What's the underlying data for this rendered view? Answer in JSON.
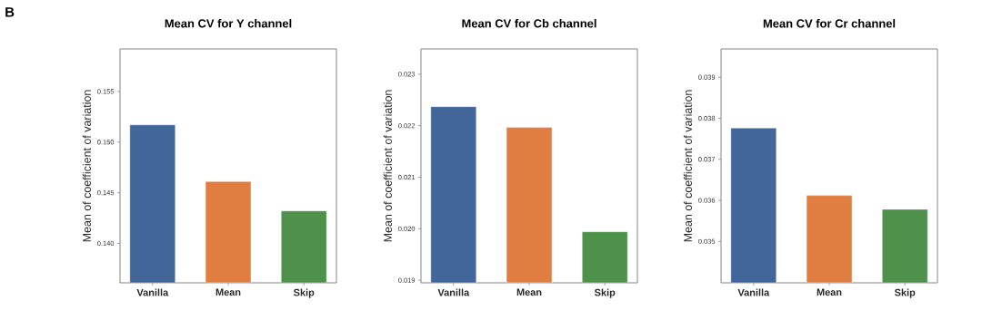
{
  "chart_data": [
    {
      "type": "bar",
      "title": "Mean CV for Y channel",
      "ylabel": "Mean of coefficient of variation",
      "annotations": [
        "B"
      ],
      "categories": [
        "Vanilla",
        "Mean",
        "Skip"
      ],
      "values": [
        0.1517,
        0.1461,
        0.1432
      ],
      "colors": [
        "#426699",
        "#e07e41",
        "#4d914a"
      ],
      "ylim": [
        0.1361,
        0.1592
      ],
      "yticks": [
        {
          "value": 0.14,
          "label": "0.140"
        },
        0.145,
        {
          "value": 0.15,
          "label": "0.150"
        },
        0.155
      ]
    },
    {
      "type": "bar",
      "title": "Mean CV for Cb channel",
      "ylabel": "Mean of coefficient of variation",
      "categories": [
        "Vanilla",
        "Mean",
        "Skip"
      ],
      "values": [
        0.02237,
        0.02197,
        0.01994
      ],
      "colors": [
        "#426699",
        "#e07e41",
        "#4d914a"
      ],
      "ylim": [
        0.01895,
        0.02349
      ],
      "yticks": [
        0.019,
        {
          "value": 0.02,
          "label": "0.020"
        },
        0.021,
        0.022,
        0.023
      ]
    },
    {
      "type": "bar",
      "title": "Mean CV for Cr channel",
      "ylabel": "Mean of coefficient of variation",
      "categories": [
        "Vanilla",
        "Mean",
        "Skip"
      ],
      "values": [
        0.03776,
        0.03612,
        0.03578
      ],
      "colors": [
        "#426699",
        "#e07e41",
        "#4d914a"
      ],
      "ylim": [
        0.03399,
        0.03969
      ],
      "yticks": [
        0.035,
        0.036,
        0.037,
        0.038,
        0.039
      ]
    }
  ]
}
